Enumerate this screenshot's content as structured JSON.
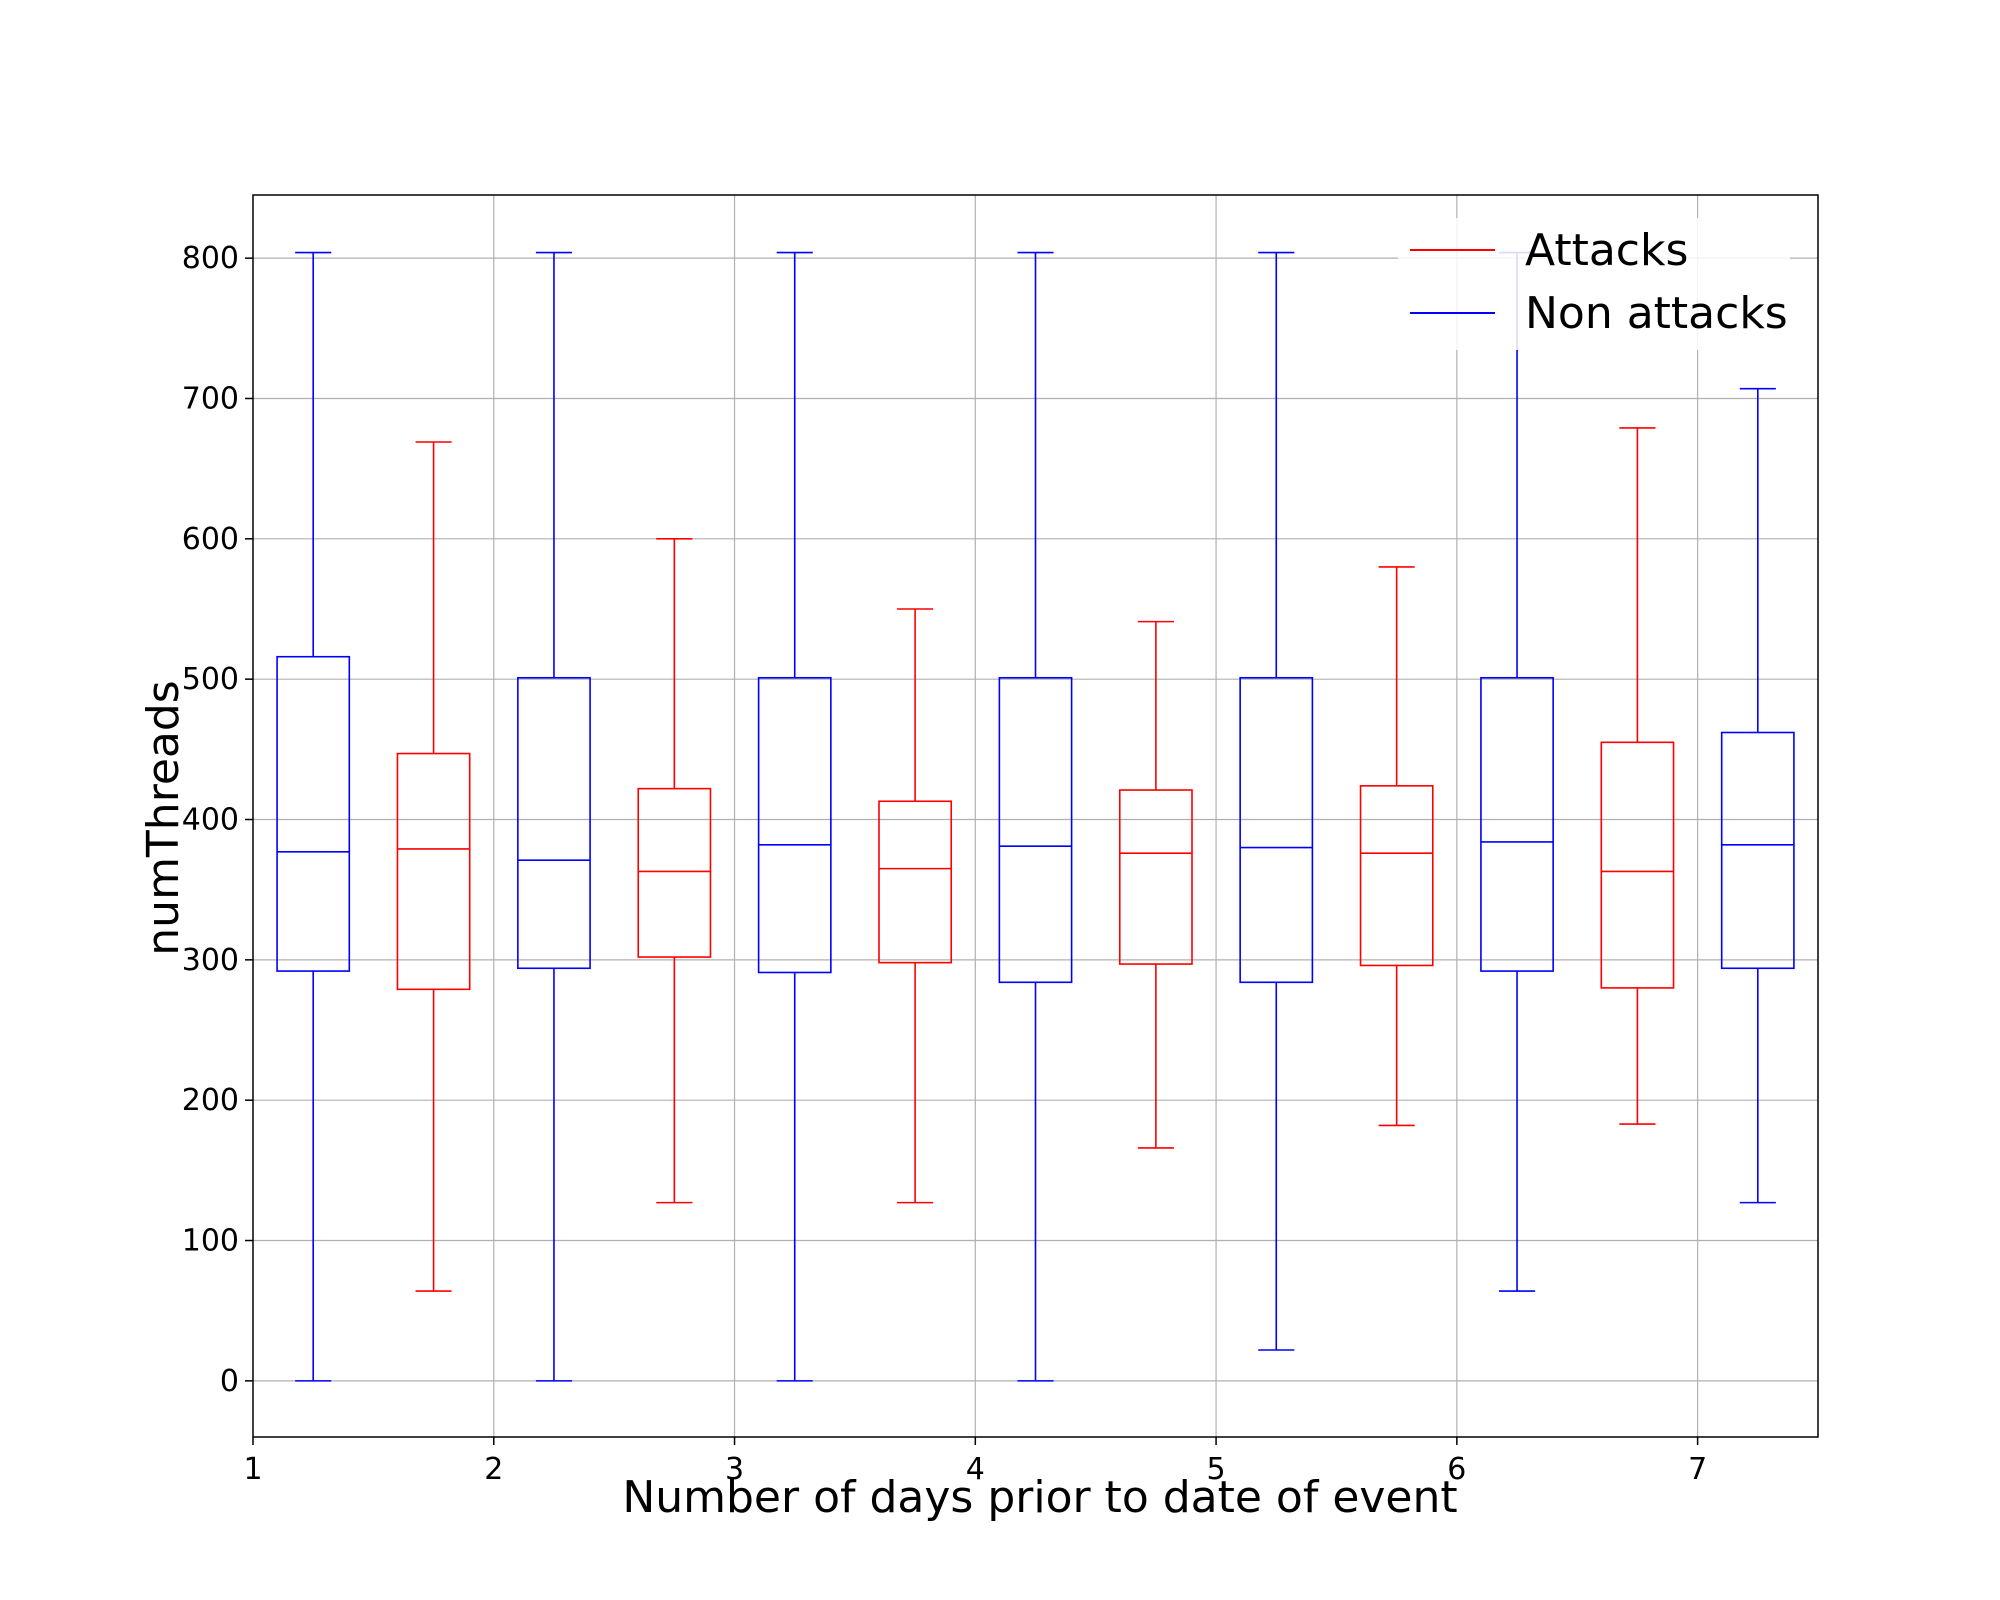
{
  "chart_data": {
    "type": "box",
    "title": "",
    "xlabel": "Number of days prior to date of event",
    "ylabel": "numThreads",
    "xlim": [
      1,
      7.5
    ],
    "ylim": [
      -40,
      845
    ],
    "x_ticks": [
      "1",
      "2",
      "3",
      "4",
      "5",
      "6",
      "7"
    ],
    "y_ticks": [
      "0",
      "100",
      "200",
      "300",
      "400",
      "500",
      "600",
      "700",
      "800"
    ],
    "grid": true,
    "legend": {
      "placement": "top-right",
      "entries": [
        {
          "label": "Attacks",
          "color": "#ff0000"
        },
        {
          "label": "Non attacks",
          "color": "#0000ff"
        }
      ]
    },
    "series": [
      {
        "name": "Attacks",
        "color": "#ff0000",
        "boxes": [
          {
            "x": 1.75,
            "whisker_low": 64,
            "q1": 279,
            "median": 379,
            "q3": 447,
            "whisker_high": 669
          },
          {
            "x": 2.75,
            "whisker_low": 127,
            "q1": 302,
            "median": 363,
            "q3": 422,
            "whisker_high": 600
          },
          {
            "x": 3.75,
            "whisker_low": 127,
            "q1": 298,
            "median": 365,
            "q3": 413,
            "whisker_high": 550
          },
          {
            "x": 4.75,
            "whisker_low": 166,
            "q1": 297,
            "median": 376,
            "q3": 421,
            "whisker_high": 541
          },
          {
            "x": 5.75,
            "whisker_low": 182,
            "q1": 296,
            "median": 376,
            "q3": 424,
            "whisker_high": 580
          },
          {
            "x": 6.75,
            "whisker_low": 183,
            "q1": 280,
            "median": 363,
            "q3": 455,
            "whisker_high": 679
          }
        ]
      },
      {
        "name": "Non attacks",
        "color": "#0000ff",
        "boxes": [
          {
            "x": 1.25,
            "whisker_low": 0,
            "q1": 292,
            "median": 377,
            "q3": 516,
            "whisker_high": 804
          },
          {
            "x": 2.25,
            "whisker_low": 0,
            "q1": 294,
            "median": 371,
            "q3": 501,
            "whisker_high": 804
          },
          {
            "x": 3.25,
            "whisker_low": 0,
            "q1": 291,
            "median": 382,
            "q3": 501,
            "whisker_high": 804
          },
          {
            "x": 4.25,
            "whisker_low": 0,
            "q1": 284,
            "median": 381,
            "q3": 501,
            "whisker_high": 804
          },
          {
            "x": 5.25,
            "whisker_low": 22,
            "q1": 284,
            "median": 380,
            "q3": 501,
            "whisker_high": 804
          },
          {
            "x": 6.25,
            "whisker_low": 64,
            "q1": 292,
            "median": 384,
            "q3": 501,
            "whisker_high": 804
          },
          {
            "x": 7.25,
            "whisker_low": 127,
            "q1": 294,
            "median": 382,
            "q3": 462,
            "whisker_high": 707
          }
        ]
      }
    ]
  }
}
